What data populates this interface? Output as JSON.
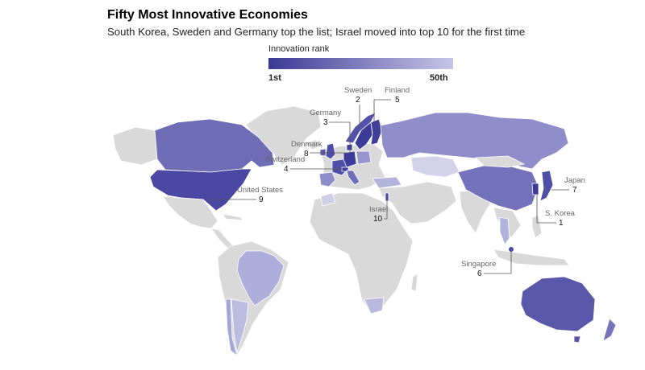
{
  "header": {
    "title": "Fifty Most Innovative Economies",
    "subtitle": "South Korea, Sweden and Germany top the list; Israel moved into top 10 for the first time"
  },
  "legend": {
    "title": "Innovation rank",
    "low_label": "1st",
    "high_label": "50th",
    "color_start": "#3b3a97",
    "color_end": "#c6c5e6"
  },
  "colors": {
    "no_data": "#d9d9d9",
    "rank_1": "#3b3a97",
    "rank_50": "#c6c5e6"
  },
  "annotations": [
    {
      "country": "Sweden",
      "rank": "2"
    },
    {
      "country": "Finland",
      "rank": "5"
    },
    {
      "country": "Germany",
      "rank": "3"
    },
    {
      "country": "Denmark",
      "rank": "8"
    },
    {
      "country": "Switzerland",
      "rank": "4"
    },
    {
      "country": "United States",
      "rank": "9"
    },
    {
      "country": "Israel",
      "rank": "10"
    },
    {
      "country": "Japan",
      "rank": "7"
    },
    {
      "country": "S. Korea",
      "rank": "1"
    },
    {
      "country": "Singapore",
      "rank": "6"
    }
  ]
}
